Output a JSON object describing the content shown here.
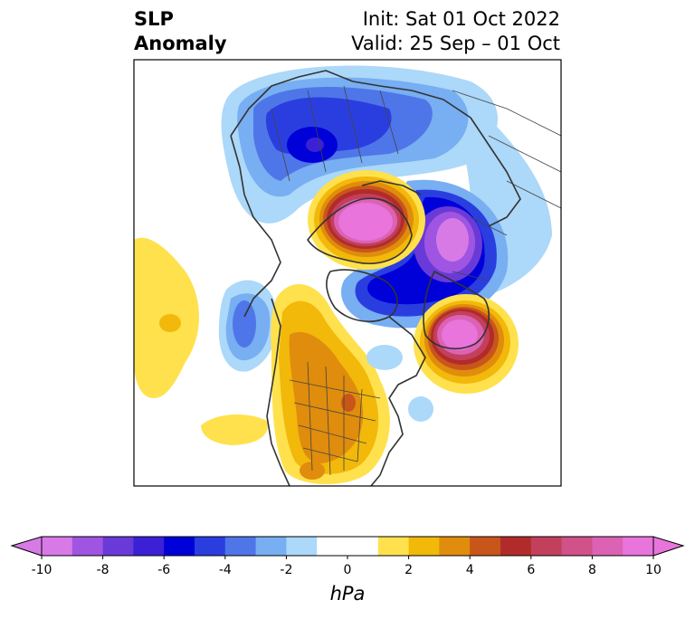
{
  "title": {
    "left_line1": "SLP",
    "left_line2": "Anomaly",
    "right_line1": "Init: Sat 01 Oct 2022",
    "right_line2": "Valid: 25 Sep – 01 Oct"
  },
  "colorbar": {
    "unit": "hPa",
    "ticks": [
      "-10",
      "-8",
      "-6",
      "-4",
      "-2",
      "0",
      "2",
      "4",
      "6",
      "8",
      "10"
    ],
    "colors": [
      "#d77ae6",
      "#9f55e2",
      "#6a3ad8",
      "#3b20d6",
      "#0000d8",
      "#2a3ee0",
      "#4f76e8",
      "#78aef2",
      "#acd8f9",
      "#ffffff",
      "#ffffff",
      "#ffe14d",
      "#f2b80a",
      "#e08c0c",
      "#c8561a",
      "#b22b2b",
      "#c2405c",
      "#d05288",
      "#dc62b4",
      "#e874dc"
    ],
    "low_extend_color": "#d77ae6",
    "high_extend_color": "#e874dc"
  },
  "map": {
    "projection": "north-polar-stereographic",
    "field": "sea-level-pressure-anomaly"
  }
}
